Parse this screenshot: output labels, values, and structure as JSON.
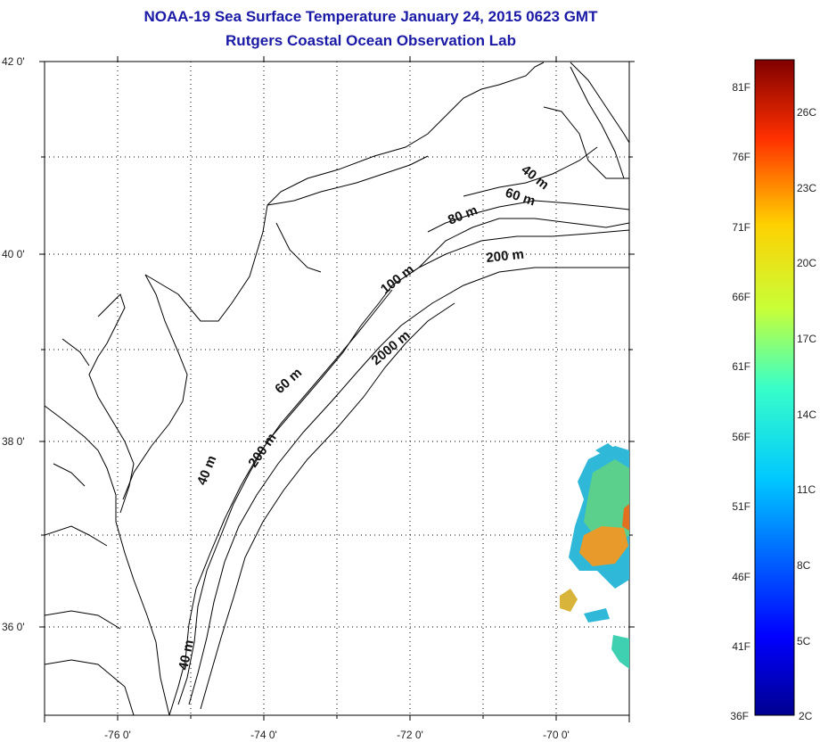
{
  "title": {
    "line1": "NOAA-19 Sea Surface Temperature January 24, 2015 0623 GMT",
    "line2": "Rutgers Coastal Ocean Observation Lab"
  },
  "axes": {
    "lat_labels": [
      "42 0'",
      "40 0'",
      "38 0'",
      "36 0'"
    ],
    "lon_labels": [
      "-76 0'",
      "-74 0'",
      "-72 0'",
      "-70 0'"
    ]
  },
  "contours": {
    "labels": [
      "40 m",
      "60 m",
      "80 m",
      "200 m",
      "100 m",
      "2000 m",
      "60 m",
      "200 m",
      "40 m",
      "40 m"
    ]
  },
  "colorbar": {
    "fahrenheit": [
      "81F",
      "76F",
      "71F",
      "66F",
      "61F",
      "56F",
      "51F",
      "46F",
      "41F",
      "36F"
    ],
    "celsius": [
      "26C",
      "23C",
      "20C",
      "17C",
      "14C",
      "11C",
      "8C",
      "5C",
      "2C"
    ]
  },
  "colors": {
    "title": "#1a1aa6",
    "land_line": "#000000",
    "warm_patch": "#e89a2a",
    "cool_patch": "#2fb8d8"
  }
}
